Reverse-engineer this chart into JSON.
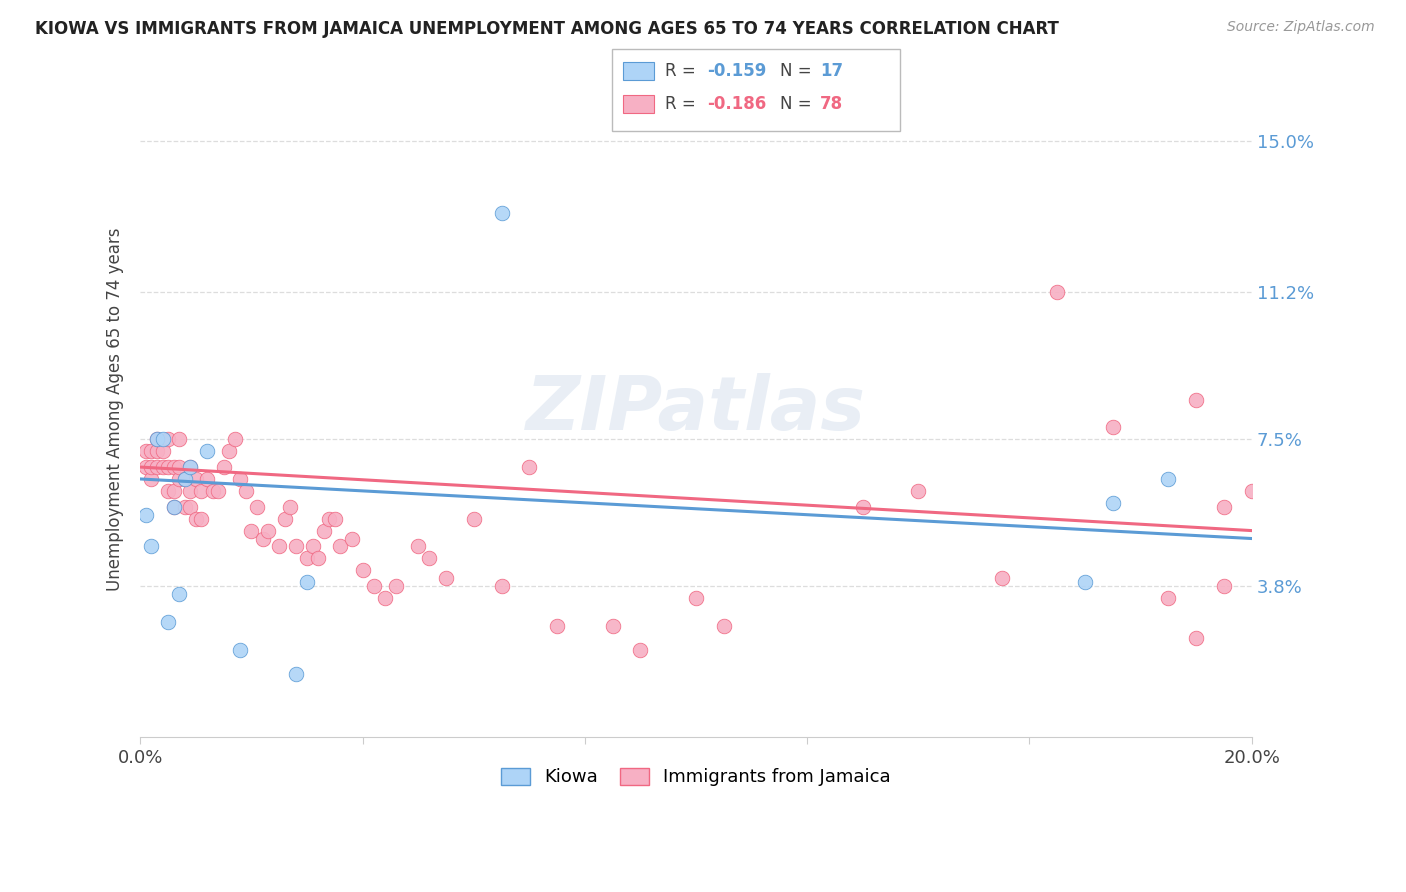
{
  "title": "KIOWA VS IMMIGRANTS FROM JAMAICA UNEMPLOYMENT AMONG AGES 65 TO 74 YEARS CORRELATION CHART",
  "source": "Source: ZipAtlas.com",
  "ylabel": "Unemployment Among Ages 65 to 74 years",
  "xlim": [
    0.0,
    0.2
  ],
  "ylim": [
    0.0,
    0.165
  ],
  "xtick_positions": [
    0.0,
    0.04,
    0.08,
    0.12,
    0.16,
    0.2
  ],
  "xtick_labels": [
    "0.0%",
    "",
    "",
    "",
    "",
    "20.0%"
  ],
  "ytick_positions": [
    0.038,
    0.075,
    0.112,
    0.15
  ],
  "ytick_labels": [
    "3.8%",
    "7.5%",
    "11.2%",
    "15.0%"
  ],
  "kiowa_color": "#aed4f7",
  "jamaica_color": "#f7b0c4",
  "kiowa_line_color": "#5b9bd5",
  "jamaica_line_color": "#f06882",
  "background_color": "#ffffff",
  "grid_color": "#dddddd",
  "watermark": "ZIPatlas",
  "kiowa_x": [
    0.001,
    0.002,
    0.003,
    0.004,
    0.005,
    0.006,
    0.007,
    0.008,
    0.009,
    0.012,
    0.018,
    0.028,
    0.03,
    0.065,
    0.17,
    0.175,
    0.185
  ],
  "kiowa_y": [
    0.056,
    0.048,
    0.075,
    0.075,
    0.029,
    0.058,
    0.036,
    0.065,
    0.068,
    0.072,
    0.022,
    0.016,
    0.039,
    0.132,
    0.039,
    0.059,
    0.065
  ],
  "jamaica_x": [
    0.001,
    0.001,
    0.002,
    0.002,
    0.002,
    0.003,
    0.003,
    0.003,
    0.004,
    0.004,
    0.005,
    0.005,
    0.005,
    0.006,
    0.006,
    0.006,
    0.007,
    0.007,
    0.007,
    0.008,
    0.008,
    0.009,
    0.009,
    0.009,
    0.01,
    0.01,
    0.011,
    0.011,
    0.012,
    0.013,
    0.014,
    0.015,
    0.016,
    0.017,
    0.018,
    0.019,
    0.02,
    0.021,
    0.022,
    0.023,
    0.025,
    0.026,
    0.027,
    0.028,
    0.03,
    0.031,
    0.032,
    0.033,
    0.034,
    0.035,
    0.036,
    0.038,
    0.04,
    0.042,
    0.044,
    0.046,
    0.05,
    0.052,
    0.055,
    0.06,
    0.065,
    0.07,
    0.075,
    0.085,
    0.09,
    0.1,
    0.105,
    0.13,
    0.14,
    0.155,
    0.165,
    0.175,
    0.185,
    0.19,
    0.19,
    0.195,
    0.195,
    0.2
  ],
  "jamaica_y": [
    0.068,
    0.072,
    0.065,
    0.068,
    0.072,
    0.068,
    0.072,
    0.075,
    0.068,
    0.072,
    0.062,
    0.068,
    0.075,
    0.058,
    0.062,
    0.068,
    0.065,
    0.068,
    0.075,
    0.058,
    0.065,
    0.058,
    0.062,
    0.068,
    0.055,
    0.065,
    0.055,
    0.062,
    0.065,
    0.062,
    0.062,
    0.068,
    0.072,
    0.075,
    0.065,
    0.062,
    0.052,
    0.058,
    0.05,
    0.052,
    0.048,
    0.055,
    0.058,
    0.048,
    0.045,
    0.048,
    0.045,
    0.052,
    0.055,
    0.055,
    0.048,
    0.05,
    0.042,
    0.038,
    0.035,
    0.038,
    0.048,
    0.045,
    0.04,
    0.055,
    0.038,
    0.068,
    0.028,
    0.028,
    0.022,
    0.035,
    0.028,
    0.058,
    0.062,
    0.04,
    0.112,
    0.078,
    0.035,
    0.025,
    0.085,
    0.058,
    0.038,
    0.062
  ]
}
